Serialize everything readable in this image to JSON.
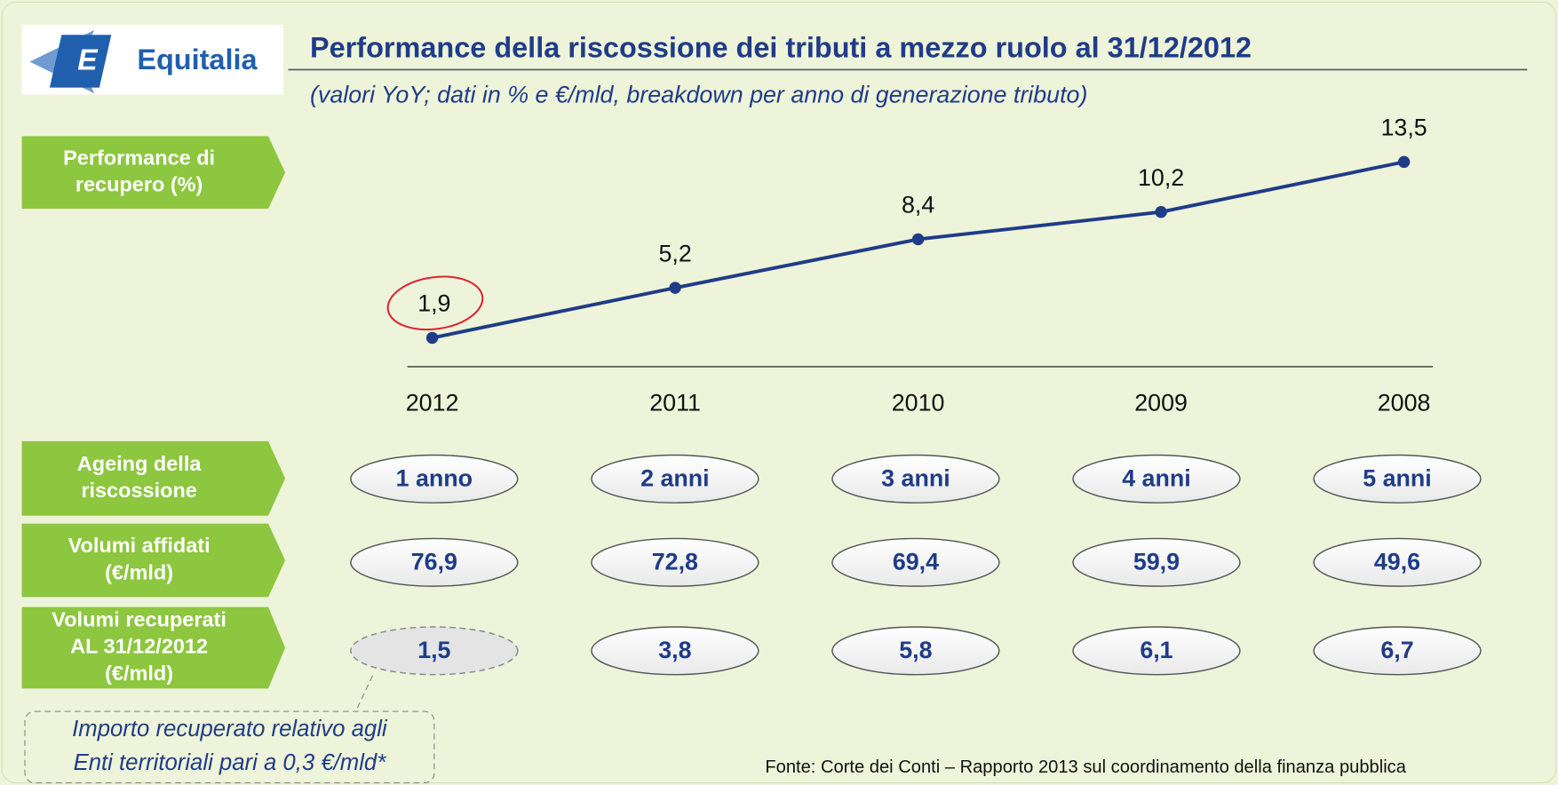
{
  "header": {
    "logo": "Equitalia",
    "title": "Performance della riscossione dei tributi a mezzo ruolo al 31/12/2012",
    "subtitle": "(valori YoY; dati in % e €/mld, breakdown per anno di generazione tributo)"
  },
  "chart_data": {
    "type": "line",
    "row_label": [
      "Performance di",
      "recupero (%)"
    ],
    "categories": [
      "2012",
      "2011",
      "2010",
      "2009",
      "2008"
    ],
    "series": [
      {
        "color": "#1f3c88",
        "values": [
          1.9,
          5.2,
          8.4,
          10.2,
          13.5
        ],
        "value_labels": [
          "1,9",
          "5,2",
          "8,4",
          "10,2",
          "13,5"
        ]
      }
    ],
    "ylim": [
      0,
      15
    ]
  },
  "table": {
    "rows": [
      {
        "label": [
          "Ageing della",
          "riscossione"
        ],
        "cells": [
          "1 anno",
          "2 anni",
          "3 anni",
          "4 anni",
          "5 anni"
        ]
      },
      {
        "label": [
          "Volumi affidati",
          "(€/mld)"
        ],
        "cells": [
          "76,9",
          "72,8",
          "69,4",
          "59,9",
          "49,6"
        ]
      },
      {
        "label": [
          "Volumi recuperati",
          "AL 31/12/2012",
          "(€/mld)"
        ],
        "cells": [
          "1,5",
          "3,8",
          "5,8",
          "6,1",
          "6,7"
        ]
      }
    ]
  },
  "note": [
    "Importo recuperato relativo agli",
    "Enti territoriali pari a 0,3 €/mld*"
  ],
  "source": "Fonte: Corte dei Conti – Rapporto 2013 sul coordinamento della finanza pubblica"
}
